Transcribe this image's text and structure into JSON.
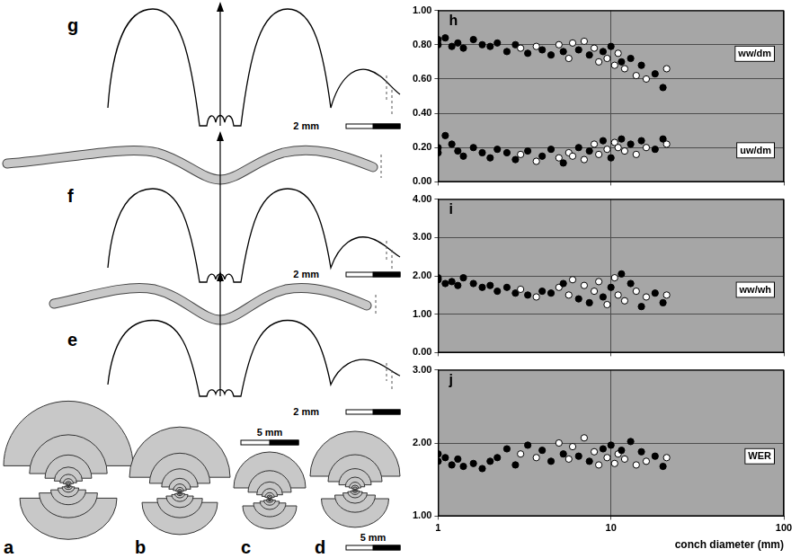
{
  "chart_data": [
    {
      "type": "scatter",
      "title": "h",
      "log": "x",
      "grid": true,
      "tick_labels": "y",
      "xlim": [
        1,
        100
      ],
      "xticks": [
        1,
        10,
        100
      ],
      "ylim": [
        0,
        1
      ],
      "yticks": [
        {
          "value": 0,
          "label": "0.00"
        },
        {
          "value": 0.2,
          "label": "0.20"
        },
        {
          "value": 0.4,
          "label": "0.40"
        },
        {
          "value": 0.6,
          "label": "0.60"
        },
        {
          "value": 0.8,
          "label": "0.80"
        },
        {
          "value": 1,
          "label": "1.00"
        }
      ],
      "series": [
        {
          "name": "ww/dm",
          "marker": "circle",
          "x": [
            1,
            1,
            1.1,
            1.2,
            1.3,
            1.4,
            1.6,
            1.8,
            2,
            2.2,
            2.5,
            2.8,
            3,
            3.3,
            3.7,
            4,
            4.5,
            5,
            5.3,
            5.7,
            6,
            6.5,
            7,
            7.5,
            8,
            8.5,
            9,
            9.5,
            10,
            10.5,
            11,
            11.5,
            12,
            13,
            14,
            15,
            16,
            18,
            20,
            21
          ],
          "values": [
            0.83,
            0.8,
            0.84,
            0.79,
            0.81,
            0.78,
            0.83,
            0.8,
            0.79,
            0.81,
            0.76,
            0.8,
            0.78,
            0.75,
            0.79,
            0.77,
            0.74,
            0.8,
            0.76,
            0.72,
            0.81,
            0.77,
            0.82,
            0.74,
            0.78,
            0.7,
            0.76,
            0.72,
            0.79,
            0.68,
            0.75,
            0.7,
            0.66,
            0.72,
            0.62,
            0.68,
            0.6,
            0.63,
            0.55,
            0.66
          ],
          "colors": [
            "#000000",
            "#000000",
            "#000000",
            "#000000",
            "#000000",
            "#000000",
            "#000000",
            "#000000",
            "#000000",
            "#000000",
            "#000000",
            "#000000",
            "#ffffff",
            "#000000",
            "#ffffff",
            "#000000",
            "#000000",
            "#ffffff",
            "#000000",
            "#ffffff",
            "#ffffff",
            "#000000",
            "#ffffff",
            "#000000",
            "#ffffff",
            "#ffffff",
            "#000000",
            "#ffffff",
            "#000000",
            "#ffffff",
            "#ffffff",
            "#000000",
            "#ffffff",
            "#000000",
            "#ffffff",
            "#000000",
            "#ffffff",
            "#000000",
            "#000000",
            "#ffffff"
          ]
        },
        {
          "name": "uw/dm",
          "marker": "circle",
          "x": [
            1,
            1,
            1.1,
            1.2,
            1.3,
            1.4,
            1.6,
            1.8,
            2,
            2.2,
            2.5,
            2.8,
            3,
            3.3,
            3.7,
            4,
            4.5,
            5,
            5.3,
            5.7,
            6,
            6.5,
            7,
            7.5,
            8,
            8.5,
            9,
            9.5,
            10,
            10.5,
            11,
            11.5,
            12,
            13,
            14,
            15,
            16,
            18,
            20,
            21
          ],
          "values": [
            0.17,
            0.2,
            0.27,
            0.22,
            0.18,
            0.15,
            0.2,
            0.17,
            0.14,
            0.19,
            0.17,
            0.13,
            0.16,
            0.18,
            0.12,
            0.15,
            0.19,
            0.14,
            0.11,
            0.17,
            0.15,
            0.2,
            0.13,
            0.18,
            0.22,
            0.16,
            0.24,
            0.19,
            0.14,
            0.23,
            0.2,
            0.25,
            0.18,
            0.22,
            0.16,
            0.24,
            0.2,
            0.19,
            0.25,
            0.22
          ],
          "colors": [
            "#000000",
            "#000000",
            "#000000",
            "#000000",
            "#000000",
            "#000000",
            "#000000",
            "#000000",
            "#000000",
            "#000000",
            "#000000",
            "#000000",
            "#ffffff",
            "#000000",
            "#ffffff",
            "#000000",
            "#000000",
            "#ffffff",
            "#000000",
            "#ffffff",
            "#ffffff",
            "#000000",
            "#ffffff",
            "#000000",
            "#ffffff",
            "#ffffff",
            "#000000",
            "#ffffff",
            "#000000",
            "#ffffff",
            "#ffffff",
            "#000000",
            "#ffffff",
            "#000000",
            "#ffffff",
            "#000000",
            "#ffffff",
            "#000000",
            "#000000",
            "#ffffff"
          ]
        }
      ]
    },
    {
      "type": "scatter",
      "title": "i",
      "log": "x",
      "grid": true,
      "tick_labels": "y",
      "xlim": [
        1,
        100
      ],
      "xticks": [
        1,
        10,
        100
      ],
      "ylim": [
        0,
        4
      ],
      "yticks": [
        {
          "value": 0,
          "label": "0.00"
        },
        {
          "value": 1,
          "label": "1.00"
        },
        {
          "value": 2,
          "label": "2.00"
        },
        {
          "value": 3,
          "label": "3.00"
        },
        {
          "value": 4,
          "label": "4.00"
        }
      ],
      "series": [
        {
          "name": "ww/wh",
          "marker": "circle",
          "x": [
            1,
            1,
            1.1,
            1.2,
            1.3,
            1.4,
            1.6,
            1.8,
            2,
            2.2,
            2.5,
            2.8,
            3,
            3.3,
            3.7,
            4,
            4.5,
            5,
            5.3,
            5.7,
            6,
            6.5,
            7,
            7.5,
            8,
            8.5,
            9,
            9.5,
            10,
            10.5,
            11,
            11.5,
            12,
            13,
            14,
            15,
            16,
            18,
            20,
            21
          ],
          "values": [
            1.9,
            1.95,
            1.8,
            1.85,
            1.75,
            1.95,
            1.8,
            1.7,
            1.75,
            1.6,
            1.7,
            1.55,
            1.65,
            1.5,
            1.45,
            1.6,
            1.55,
            1.7,
            1.8,
            1.5,
            1.9,
            1.4,
            1.75,
            1.3,
            1.6,
            1.85,
            1.45,
            1.25,
            1.7,
            1.95,
            1.5,
            2.05,
            1.35,
            1.8,
            1.6,
            1.2,
            1.45,
            1.55,
            1.3,
            1.5
          ],
          "colors": [
            "#000000",
            "#000000",
            "#000000",
            "#000000",
            "#000000",
            "#000000",
            "#000000",
            "#000000",
            "#000000",
            "#000000",
            "#000000",
            "#000000",
            "#ffffff",
            "#000000",
            "#ffffff",
            "#000000",
            "#000000",
            "#ffffff",
            "#000000",
            "#ffffff",
            "#ffffff",
            "#000000",
            "#ffffff",
            "#000000",
            "#ffffff",
            "#ffffff",
            "#000000",
            "#ffffff",
            "#000000",
            "#ffffff",
            "#ffffff",
            "#000000",
            "#ffffff",
            "#000000",
            "#ffffff",
            "#000000",
            "#ffffff",
            "#000000",
            "#000000",
            "#ffffff"
          ]
        }
      ]
    },
    {
      "type": "scatter",
      "title": "j",
      "log": "x",
      "grid": true,
      "x_label": "conch diameter (mm)",
      "xlim": [
        1,
        100
      ],
      "xticks": [
        1,
        10,
        100
      ],
      "ylim": [
        1,
        3
      ],
      "yticks": [
        {
          "value": 1,
          "label": "1.00"
        },
        {
          "value": 2,
          "label": "2.00"
        },
        {
          "value": 3,
          "label": "3.00"
        }
      ],
      "series": [
        {
          "name": "WER",
          "marker": "circle",
          "x": [
            1,
            1,
            1.1,
            1.2,
            1.3,
            1.4,
            1.6,
            1.8,
            2,
            2.2,
            2.5,
            2.8,
            3,
            3.3,
            3.7,
            4,
            4.5,
            5,
            5.3,
            5.7,
            6,
            6.5,
            7,
            7.5,
            8,
            8.5,
            9,
            9.5,
            10,
            10.5,
            11,
            11.5,
            12,
            13,
            14,
            15,
            16,
            18,
            20,
            21
          ],
          "values": [
            1.85,
            1.75,
            1.8,
            1.7,
            1.78,
            1.68,
            1.72,
            1.65,
            1.75,
            1.8,
            1.92,
            1.7,
            1.85,
            1.97,
            1.8,
            1.9,
            1.75,
            2.0,
            1.85,
            1.78,
            1.95,
            1.82,
            2.07,
            1.75,
            1.88,
            1.7,
            1.92,
            1.8,
            1.97,
            1.72,
            1.85,
            1.9,
            1.78,
            2.02,
            1.7,
            1.88,
            1.75,
            1.82,
            1.68,
            1.8
          ],
          "colors": [
            "#000000",
            "#000000",
            "#000000",
            "#000000",
            "#000000",
            "#000000",
            "#000000",
            "#000000",
            "#000000",
            "#000000",
            "#000000",
            "#000000",
            "#ffffff",
            "#000000",
            "#ffffff",
            "#000000",
            "#000000",
            "#ffffff",
            "#000000",
            "#ffffff",
            "#ffffff",
            "#000000",
            "#ffffff",
            "#000000",
            "#ffffff",
            "#ffffff",
            "#000000",
            "#ffffff",
            "#000000",
            "#ffffff",
            "#ffffff",
            "#000000",
            "#ffffff",
            "#000000",
            "#ffffff",
            "#000000",
            "#ffffff",
            "#000000",
            "#000000",
            "#ffffff"
          ]
        }
      ]
    }
  ],
  "diagram": {
    "sutures": [
      {
        "panel": "g",
        "scale_bar": "2 mm"
      },
      {
        "panel": "f",
        "scale_bar": "2 mm"
      },
      {
        "panel": "e",
        "scale_bar": "2 mm"
      }
    ],
    "cross_sections": {
      "panels": [
        "a",
        "b",
        "c",
        "d"
      ],
      "scale_bars": [
        "5 mm",
        "5 mm"
      ]
    }
  }
}
